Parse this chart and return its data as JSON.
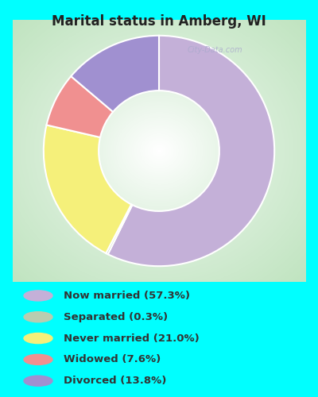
{
  "title": "Marital status in Amberg, WI",
  "title_color": "#222222",
  "background_top": "#00FFFF",
  "slices": [
    {
      "label": "Now married (57.3%)",
      "value": 57.3,
      "color": "#c4b0d8"
    },
    {
      "label": "Separated (0.3%)",
      "value": 0.3,
      "color": "#b8cdb0"
    },
    {
      "label": "Never married (21.0%)",
      "value": 21.0,
      "color": "#f5f07a"
    },
    {
      "label": "Widowed (7.6%)",
      "value": 7.6,
      "color": "#f09090"
    },
    {
      "label": "Divorced (13.8%)",
      "value": 13.8,
      "color": "#a090d0"
    }
  ],
  "legend_colors": [
    "#c4b0d8",
    "#b8cdb0",
    "#f5f07a",
    "#f09090",
    "#a090d0"
  ],
  "legend_labels": [
    "Now married (57.3%)",
    "Separated (0.3%)",
    "Never married (21.0%)",
    "Widowed (7.6%)",
    "Divorced (13.8%)"
  ],
  "figsize": [
    4.0,
    5.0
  ],
  "dpi": 100
}
